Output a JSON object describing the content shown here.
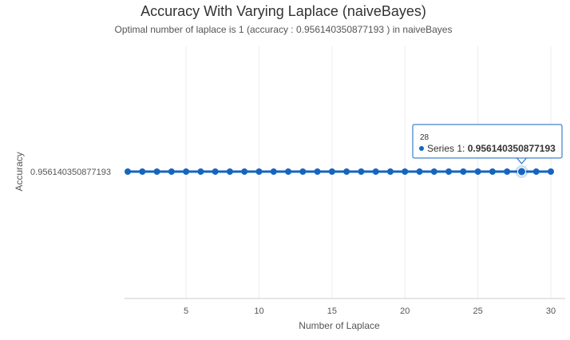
{
  "chart_data": {
    "type": "line",
    "title": "Accuracy With Varying Laplace (naiveBayes)",
    "subtitle": "Optimal number of laplace is 1 (accuracy : 0.956140350877193 ) in naiveBayes",
    "xlabel": "Number of Laplace",
    "ylabel": "Accuracy",
    "x": [
      1,
      2,
      3,
      4,
      5,
      6,
      7,
      8,
      9,
      10,
      11,
      12,
      13,
      14,
      15,
      16,
      17,
      18,
      19,
      20,
      21,
      22,
      23,
      24,
      25,
      26,
      27,
      28,
      29,
      30
    ],
    "series": [
      {
        "name": "Series 1",
        "values": [
          0.956140350877193,
          0.956140350877193,
          0.956140350877193,
          0.956140350877193,
          0.956140350877193,
          0.956140350877193,
          0.956140350877193,
          0.956140350877193,
          0.956140350877193,
          0.956140350877193,
          0.956140350877193,
          0.956140350877193,
          0.956140350877193,
          0.956140350877193,
          0.956140350877193,
          0.956140350877193,
          0.956140350877193,
          0.956140350877193,
          0.956140350877193,
          0.956140350877193,
          0.956140350877193,
          0.956140350877193,
          0.956140350877193,
          0.956140350877193,
          0.956140350877193,
          0.956140350877193,
          0.956140350877193,
          0.956140350877193,
          0.956140350877193,
          0.956140350877193
        ],
        "color": "#1565c0"
      }
    ],
    "x_ticks": [
      5,
      10,
      15,
      20,
      25,
      30
    ],
    "y_tick_labels": [
      "0.956140350877193"
    ],
    "xlim": [
      0,
      30
    ],
    "grid": true,
    "legend": "none",
    "tooltip": {
      "header": "28",
      "series_label": "Series 1: ",
      "value": "0.956140350877193",
      "x": 28
    }
  },
  "colors": {
    "series": "#1565c0",
    "gridline": "#ececec",
    "tooltip_border": "#1565c0"
  }
}
